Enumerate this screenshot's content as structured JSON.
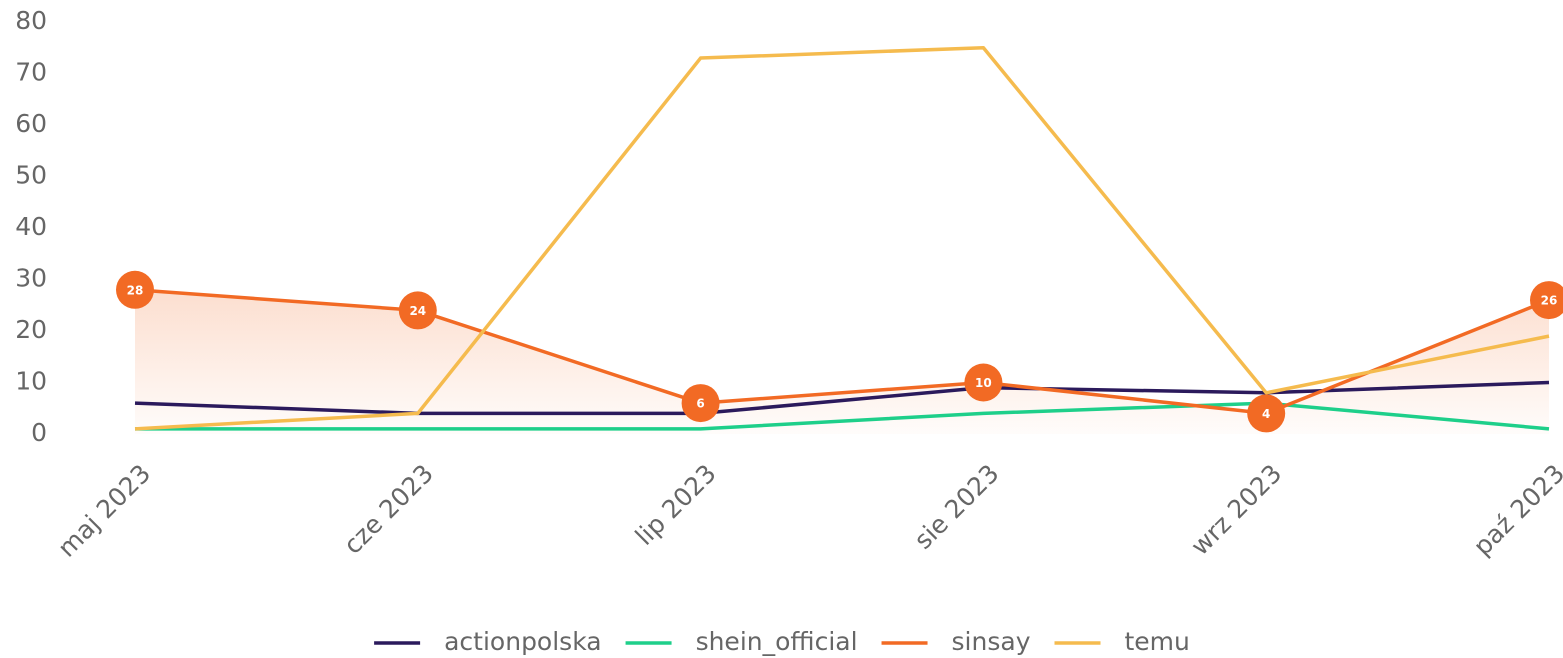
{
  "chart_data": {
    "type": "line",
    "categories": [
      "maj 2023",
      "cze 2023",
      "lip 2023",
      "sie 2023",
      "wrz 2023",
      "paź 2023"
    ],
    "series": [
      {
        "name": "actionpolska",
        "color": "#2b1a5c",
        "values": [
          6,
          4,
          4,
          9,
          8,
          10
        ]
      },
      {
        "name": "shein_official",
        "color": "#1ecf8a",
        "values": [
          1,
          1,
          1,
          4,
          6,
          1
        ]
      },
      {
        "name": "sinsay",
        "color": "#f26a24",
        "values": [
          28,
          24,
          6,
          10,
          4,
          26
        ],
        "area": true,
        "markers": true
      },
      {
        "name": "temu",
        "color": "#f5bb4e",
        "values": [
          1,
          4,
          73,
          75,
          8,
          19
        ]
      }
    ],
    "ylim": [
      0,
      80
    ],
    "yticks": [
      0,
      10,
      20,
      30,
      40,
      50,
      60,
      70,
      80
    ],
    "grid": false,
    "legend": "bottom"
  }
}
